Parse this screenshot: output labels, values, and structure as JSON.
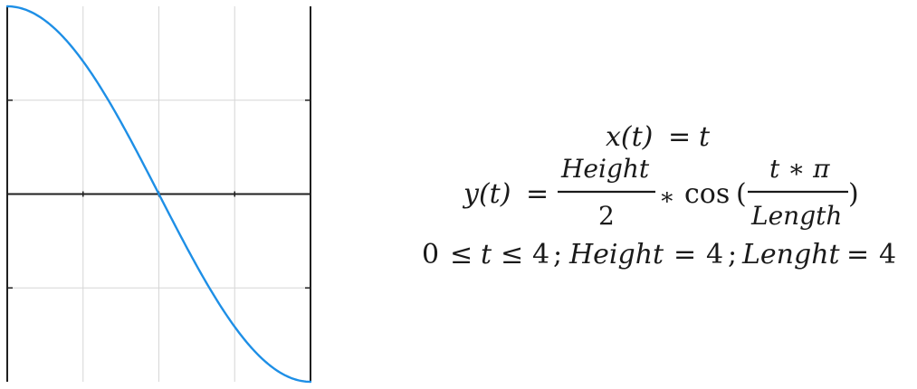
{
  "chart_data": {
    "type": "line",
    "title": "",
    "xlabel": "",
    "ylabel": "",
    "xlim": [
      0,
      4
    ],
    "ylim": [
      -2,
      2
    ],
    "x_gridlines": [
      1,
      2,
      3
    ],
    "y_gridlines": [
      -1,
      0,
      1
    ],
    "grid": true,
    "series": [
      {
        "color": "#1E8FE6",
        "function": "y = 2 * cos(t * pi / 4)",
        "t_range": [
          0,
          4
        ],
        "x": [
          0,
          0.5,
          1,
          1.5,
          2,
          2.5,
          3,
          3.5,
          4
        ],
        "y": [
          2,
          1.848,
          1.414,
          0.765,
          0,
          -0.765,
          -1.414,
          -1.848,
          -2
        ]
      }
    ]
  },
  "equations": {
    "x_eq": {
      "lhs": "x(t)",
      "eq": "=",
      "rhs": "t"
    },
    "y_eq": {
      "lhs": "y(t)",
      "eq": "=",
      "frac1_num": "Height",
      "frac1_den": "2",
      "op": "∗",
      "func": "cos",
      "open": "(",
      "frac2_num": "t ∗ π",
      "frac2_den": "Length",
      "close": ")"
    },
    "constraints": {
      "range_0": "0",
      "le1": "≤",
      "var": "t",
      "le2": "≤",
      "range_4": "4",
      "sep1": ";",
      "height_name": "Height",
      "height_eq": "=",
      "height_val": "4",
      "sep2": ";",
      "length_name": "Lenght",
      "length_eq": "=",
      "length_val": "4"
    }
  }
}
